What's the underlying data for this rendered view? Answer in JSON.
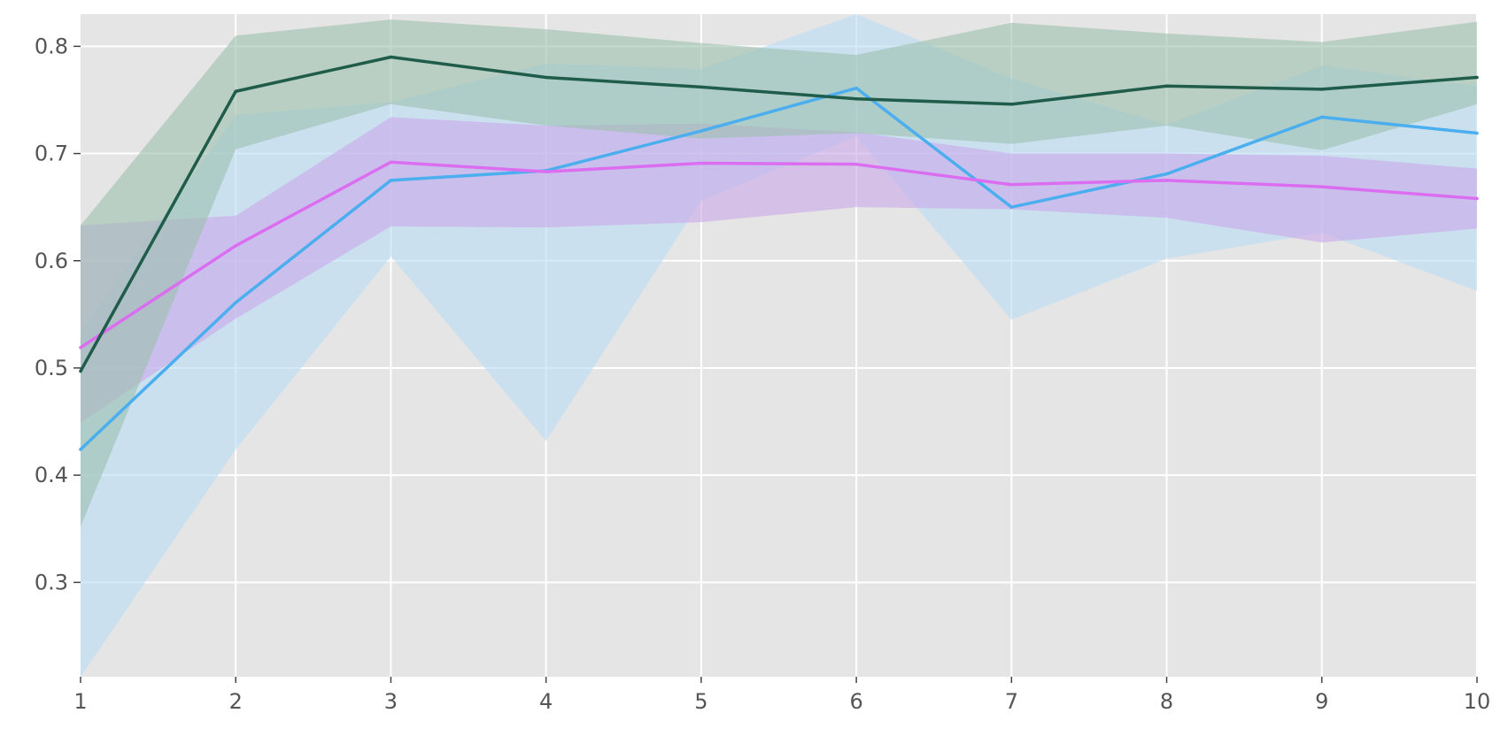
{
  "chart_data": {
    "type": "line",
    "title": "",
    "xlabel": "",
    "ylabel": "",
    "x": [
      1,
      2,
      3,
      4,
      5,
      6,
      7,
      8,
      9,
      10
    ],
    "xlim": [
      1,
      10
    ],
    "ylim": [
      0.212,
      0.83
    ],
    "x_ticks": [
      "1",
      "2",
      "3",
      "4",
      "5",
      "6",
      "7",
      "8",
      "9",
      "10"
    ],
    "y_ticks": [
      "0.3",
      "0.4",
      "0.5",
      "0.6",
      "0.7",
      "0.8"
    ],
    "y_tick_values": [
      0.3,
      0.4,
      0.5,
      0.6,
      0.7,
      0.8
    ],
    "grid": true,
    "legend": "none",
    "plot_background": "#e5e5e5",
    "series": [
      {
        "color": "#4baeee",
        "band_color": "#b9dcf5",
        "values": [
          0.424,
          0.561,
          0.675,
          0.684,
          0.721,
          0.761,
          0.65,
          0.681,
          0.734,
          0.719
        ],
        "upper": [
          0.534,
          0.736,
          0.748,
          0.784,
          0.779,
          0.83,
          0.77,
          0.727,
          0.782,
          0.763
        ],
        "lower": [
          0.212,
          0.424,
          0.604,
          0.432,
          0.656,
          0.716,
          0.545,
          0.602,
          0.626,
          0.572
        ]
      },
      {
        "color": "#db6ef0",
        "band_color": "#c9a8ea",
        "values": [
          0.519,
          0.614,
          0.692,
          0.683,
          0.691,
          0.69,
          0.671,
          0.675,
          0.669,
          0.658
        ],
        "upper": [
          0.633,
          0.642,
          0.734,
          0.726,
          0.728,
          0.72,
          0.7,
          0.7,
          0.698,
          0.686
        ],
        "lower": [
          0.449,
          0.546,
          0.632,
          0.631,
          0.636,
          0.65,
          0.648,
          0.64,
          0.617,
          0.63
        ]
      },
      {
        "color": "#1f5c4a",
        "band_color": "#9dbfae",
        "values": [
          0.497,
          0.758,
          0.79,
          0.771,
          0.762,
          0.751,
          0.746,
          0.763,
          0.76,
          0.771
        ],
        "upper": [
          0.633,
          0.81,
          0.825,
          0.816,
          0.803,
          0.792,
          0.822,
          0.812,
          0.804,
          0.823
        ],
        "lower": [
          0.352,
          0.704,
          0.746,
          0.726,
          0.714,
          0.719,
          0.709,
          0.726,
          0.703,
          0.746
        ]
      }
    ]
  }
}
